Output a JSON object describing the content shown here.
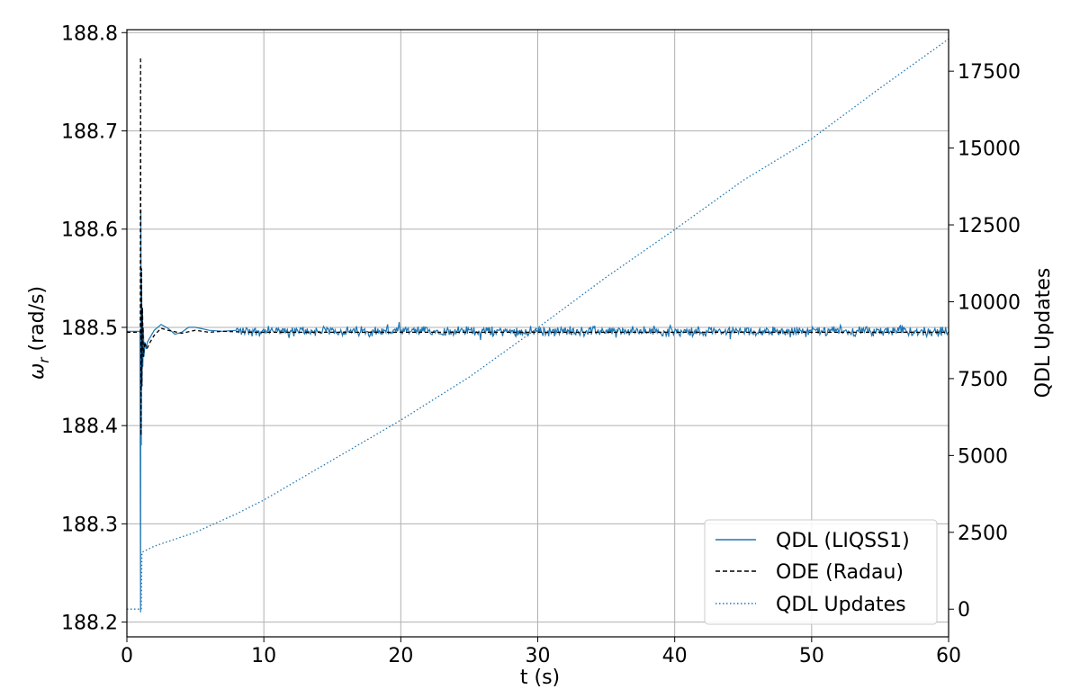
{
  "chart_data": {
    "type": "line",
    "xlabel": "t (s)",
    "ylabel_left": "ω_r (rad/s)",
    "ylabel_left_symbol": "ω",
    "ylabel_left_subscript": "r",
    "ylabel_left_rest": " (rad/s)",
    "ylabel_right": "QDL Updates",
    "xlim": [
      0,
      60
    ],
    "ylim_left": [
      188.185,
      188.803
    ],
    "ylim_right": [
      -900,
      18850
    ],
    "x_ticks": [
      0,
      10,
      20,
      30,
      40,
      50,
      60
    ],
    "y_left_ticks": [
      188.2,
      188.3,
      188.4,
      188.5,
      188.6,
      188.7,
      188.8
    ],
    "y_right_ticks": [
      0,
      2500,
      5000,
      7500,
      10000,
      12500,
      15000,
      17500
    ],
    "x_tick_labels": [
      "0",
      "10",
      "20",
      "30",
      "40",
      "50",
      "60"
    ],
    "y_left_tick_labels": [
      "188.2",
      "188.3",
      "188.4",
      "188.5",
      "188.6",
      "188.7",
      "188.8"
    ],
    "y_right_tick_labels": [
      "0",
      "2500",
      "5000",
      "7500",
      "10000",
      "12500",
      "15000",
      "17500"
    ],
    "grid": true,
    "legend_position": "bottom-right",
    "series": [
      {
        "name": "QDL (LIQSS1)",
        "axis": "left",
        "style": "solid",
        "color": "#1f77b4",
        "x": [
          0,
          0.95,
          1.0,
          1.02,
          1.05,
          1.08,
          1.1,
          1.13,
          1.16,
          1.2,
          1.25,
          1.3,
          1.4,
          1.5,
          1.7,
          2.0,
          2.5,
          3.0,
          3.5,
          4.0,
          4.5,
          5.0,
          6.0,
          7.0,
          8.0,
          10.0,
          15.0,
          20.0,
          25.0,
          30.0,
          35.0,
          40.0,
          45.0,
          50.0,
          55.0,
          60.0
        ],
        "y": [
          188.496,
          188.496,
          188.21,
          188.62,
          188.38,
          188.54,
          188.44,
          188.52,
          188.46,
          188.5,
          188.47,
          188.485,
          188.478,
          188.485,
          188.49,
          188.497,
          188.503,
          188.499,
          188.493,
          188.495,
          188.5,
          188.5,
          188.497,
          188.496,
          188.497,
          188.496,
          188.496,
          188.496,
          188.496,
          188.496,
          188.496,
          188.496,
          188.496,
          188.496,
          188.496,
          188.496
        ],
        "noise_amplitude": 0.006
      },
      {
        "name": "ODE (Radau)",
        "axis": "left",
        "style": "dashed",
        "color": "#000000",
        "x": [
          0,
          0.98,
          1.0,
          1.03,
          1.07,
          1.1,
          1.14,
          1.2,
          1.3,
          1.45,
          1.7,
          2.0,
          2.5,
          3.0,
          4.0,
          5.0,
          6.0,
          7.0,
          9.0,
          60.0
        ],
        "y": [
          188.495,
          188.495,
          188.775,
          188.39,
          188.56,
          188.44,
          188.52,
          188.47,
          188.485,
          188.478,
          188.485,
          188.492,
          188.499,
          188.497,
          188.494,
          188.497,
          188.495,
          188.496,
          188.495,
          188.495
        ]
      },
      {
        "name": "QDL Updates",
        "axis": "right",
        "style": "dotted",
        "color": "#1f77b4",
        "x": [
          0,
          1.05,
          1.1,
          2,
          5,
          8,
          10,
          15,
          20,
          25,
          30,
          35,
          40,
          45,
          50,
          55,
          60
        ],
        "y": [
          0,
          0,
          1850,
          2050,
          2500,
          3100,
          3550,
          4850,
          6150,
          7550,
          9150,
          10800,
          12350,
          13950,
          15300,
          16950,
          18550
        ]
      }
    ]
  }
}
